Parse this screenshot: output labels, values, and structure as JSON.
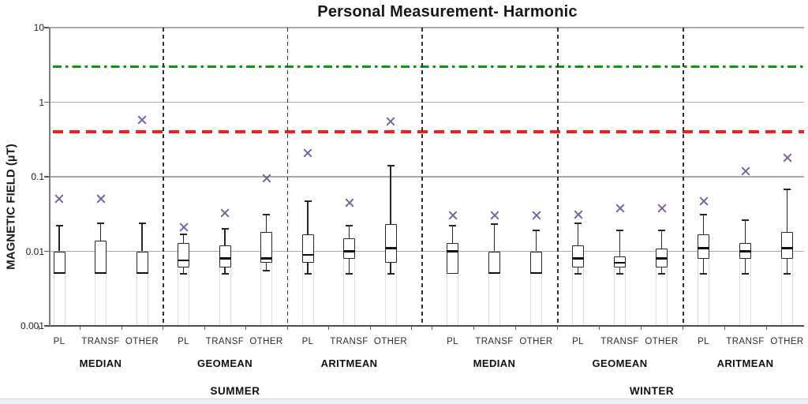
{
  "chart_data": {
    "type": "box",
    "title": "Personal Measurement- Harmonic",
    "ylabel": "MAGNETIC FIELD (µT)",
    "yscale": "log",
    "ylim": [
      0.001,
      10
    ],
    "ytick_labels": [
      "10",
      "1",
      "0.1",
      "0.01",
      "0.001"
    ],
    "ytick_values": [
      10,
      1,
      0.1,
      0.01,
      0.001
    ],
    "grid": "horizontal-decades",
    "categories": [
      "PL",
      "TRANSF",
      "OTHER"
    ],
    "marker_symbol": "x",
    "marker_color": "#7b5fa3",
    "reference_lines": [
      {
        "name": "green-limit-line",
        "value": 3,
        "color": "#0a9a0a",
        "style": "dash-dot"
      },
      {
        "name": "red-limit-line",
        "value": 0.4,
        "color": "#f02020",
        "style": "dashed"
      }
    ],
    "seasons": [
      {
        "label": "SUMMER",
        "groups": [
          {
            "label": "MEDIAN",
            "boxes": [
              {
                "category": "PL",
                "whisker_low": 0.005,
                "q1": 0.005,
                "median": 0.005,
                "q3": 0.01,
                "whisker_high": 0.022,
                "x_marker": 0.05
              },
              {
                "category": "TRANSF",
                "whisker_low": 0.005,
                "q1": 0.005,
                "median": 0.005,
                "q3": 0.014,
                "whisker_high": 0.024,
                "x_marker": 0.05
              },
              {
                "category": "OTHER",
                "whisker_low": 0.005,
                "q1": 0.005,
                "median": 0.005,
                "q3": 0.01,
                "whisker_high": 0.024,
                "x_marker": 0.58
              }
            ]
          },
          {
            "label": "GEOMEAN",
            "boxes": [
              {
                "category": "PL",
                "whisker_low": 0.005,
                "q1": 0.006,
                "median": 0.0075,
                "q3": 0.013,
                "whisker_high": 0.017,
                "x_marker": 0.021
              },
              {
                "category": "TRANSF",
                "whisker_low": 0.005,
                "q1": 0.006,
                "median": 0.008,
                "q3": 0.012,
                "whisker_high": 0.02,
                "x_marker": 0.033
              },
              {
                "category": "OTHER",
                "whisker_low": 0.0055,
                "q1": 0.007,
                "median": 0.008,
                "q3": 0.018,
                "whisker_high": 0.031,
                "x_marker": 0.095
              }
            ]
          },
          {
            "label": "ARITMEAN",
            "boxes": [
              {
                "category": "PL",
                "whisker_low": 0.005,
                "q1": 0.007,
                "median": 0.009,
                "q3": 0.017,
                "whisker_high": 0.047,
                "x_marker": 0.21
              },
              {
                "category": "TRANSF",
                "whisker_low": 0.005,
                "q1": 0.008,
                "median": 0.01,
                "q3": 0.015,
                "whisker_high": 0.022,
                "x_marker": 0.045
              },
              {
                "category": "OTHER",
                "whisker_low": 0.005,
                "q1": 0.007,
                "median": 0.011,
                "q3": 0.023,
                "whisker_high": 0.14,
                "x_marker": 0.55
              }
            ]
          }
        ]
      },
      {
        "label": "WINTER",
        "groups": [
          {
            "label": "MEDIAN",
            "boxes": [
              {
                "category": "PL",
                "whisker_low": 0.005,
                "q1": 0.005,
                "median": 0.01,
                "q3": 0.013,
                "whisker_high": 0.022,
                "x_marker": 0.03
              },
              {
                "category": "TRANSF",
                "whisker_low": 0.005,
                "q1": 0.005,
                "median": 0.005,
                "q3": 0.01,
                "whisker_high": 0.023,
                "x_marker": 0.03
              },
              {
                "category": "OTHER",
                "whisker_low": 0.005,
                "q1": 0.005,
                "median": 0.005,
                "q3": 0.01,
                "whisker_high": 0.019,
                "x_marker": 0.03
              }
            ]
          },
          {
            "label": "GEOMEAN",
            "boxes": [
              {
                "category": "PL",
                "whisker_low": 0.005,
                "q1": 0.006,
                "median": 0.008,
                "q3": 0.012,
                "whisker_high": 0.024,
                "x_marker": 0.031
              },
              {
                "category": "TRANSF",
                "whisker_low": 0.005,
                "q1": 0.006,
                "median": 0.007,
                "q3": 0.0085,
                "whisker_high": 0.019,
                "x_marker": 0.038
              },
              {
                "category": "OTHER",
                "whisker_low": 0.005,
                "q1": 0.006,
                "median": 0.008,
                "q3": 0.011,
                "whisker_high": 0.019,
                "x_marker": 0.038
              }
            ]
          },
          {
            "label": "ARITMEAN",
            "boxes": [
              {
                "category": "PL",
                "whisker_low": 0.005,
                "q1": 0.008,
                "median": 0.011,
                "q3": 0.017,
                "whisker_high": 0.031,
                "x_marker": 0.047
              },
              {
                "category": "TRANSF",
                "whisker_low": 0.005,
                "q1": 0.008,
                "median": 0.01,
                "q3": 0.013,
                "whisker_high": 0.026,
                "x_marker": 0.12
              },
              {
                "category": "OTHER",
                "whisker_low": 0.005,
                "q1": 0.008,
                "median": 0.011,
                "q3": 0.018,
                "whisker_high": 0.068,
                "x_marker": 0.18
              }
            ]
          }
        ]
      }
    ]
  }
}
